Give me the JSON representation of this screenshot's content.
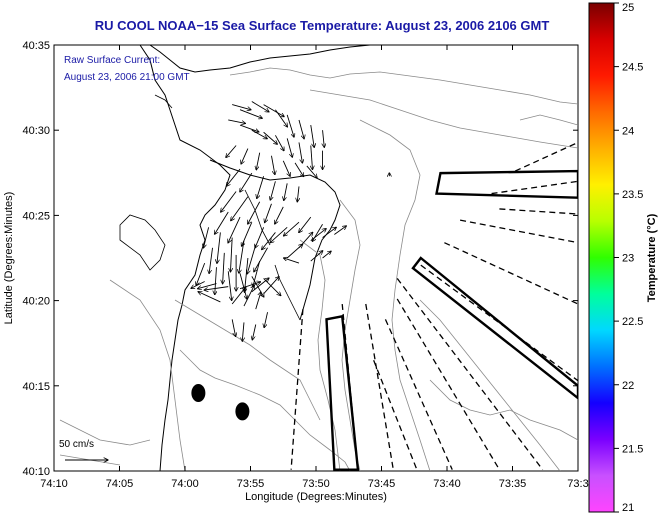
{
  "chart_data": {
    "type": "map",
    "title": "RU COOL  NOAA−15  Sea Surface Temperature:  August 23, 2006 2106 GMT",
    "legend": {
      "line1": "Raw Surface Current:",
      "line2": "August 23, 2006 21:00 GMT"
    },
    "xlabel": "Longitude (Degrees:Minutes)",
    "ylabel": "Latitude (Degrees:Minutes)",
    "x_ticks": [
      "74:10",
      "74:05",
      "74:00",
      "73:55",
      "73:50",
      "73:45",
      "73:40",
      "73:35",
      "73:3"
    ],
    "y_ticks": [
      "40:35",
      "40:30",
      "40:25",
      "40:20",
      "40:15",
      "40:10"
    ],
    "xlim": [
      -74.1667,
      -73.5
    ],
    "ylim": [
      40.1667,
      40.5833
    ],
    "scale_arrow_label": "50 cm/s",
    "colorbar": {
      "label": "Temperature (°C)",
      "ticks": [
        "25",
        "24.5",
        "24",
        "23.5",
        "23",
        "22.5",
        "22",
        "21.5",
        "21"
      ],
      "range": [
        21,
        25
      ],
      "colors": [
        "#ff44ff",
        "#c850ff",
        "#7a00ff",
        "#1400ff",
        "#0070ff",
        "#00d8ff",
        "#00ff9c",
        "#30ff00",
        "#b8ff00",
        "#fff000",
        "#ffb000",
        "#ff6a00",
        "#ff1a00",
        "#d80000",
        "#7a0000"
      ]
    },
    "current_vectors": [
      {
        "lon": -73.94,
        "lat": 40.525,
        "u": 22,
        "v": -6
      },
      {
        "lon": -73.93,
        "lat": 40.52,
        "u": 26,
        "v": -10
      },
      {
        "lon": -73.915,
        "lat": 40.528,
        "u": 20,
        "v": -12
      },
      {
        "lon": -73.9,
        "lat": 40.525,
        "u": 24,
        "v": -14
      },
      {
        "lon": -73.885,
        "lat": 40.52,
        "u": 14,
        "v": -20
      },
      {
        "lon": -73.87,
        "lat": 40.515,
        "u": 8,
        "v": -26
      },
      {
        "lon": -73.855,
        "lat": 40.51,
        "u": 6,
        "v": -22
      },
      {
        "lon": -73.84,
        "lat": 40.505,
        "u": 4,
        "v": -26
      },
      {
        "lon": -73.825,
        "lat": 40.5,
        "u": 2,
        "v": -20
      },
      {
        "lon": -73.945,
        "lat": 40.51,
        "u": 20,
        "v": -4
      },
      {
        "lon": -73.93,
        "lat": 40.505,
        "u": 22,
        "v": -8
      },
      {
        "lon": -73.915,
        "lat": 40.5,
        "u": 18,
        "v": -10
      },
      {
        "lon": -73.9,
        "lat": 40.498,
        "u": 16,
        "v": -14
      },
      {
        "lon": -73.885,
        "lat": 40.495,
        "u": 10,
        "v": -18
      },
      {
        "lon": -73.87,
        "lat": 40.492,
        "u": 6,
        "v": -22
      },
      {
        "lon": -73.855,
        "lat": 40.488,
        "u": 4,
        "v": -24
      },
      {
        "lon": -73.84,
        "lat": 40.485,
        "u": 2,
        "v": -28
      },
      {
        "lon": -73.825,
        "lat": 40.48,
        "u": 0,
        "v": -22
      },
      {
        "lon": -73.935,
        "lat": 40.485,
        "u": -12,
        "v": -14
      },
      {
        "lon": -73.92,
        "lat": 40.482,
        "u": -8,
        "v": -18
      },
      {
        "lon": -73.905,
        "lat": 40.478,
        "u": -4,
        "v": -20
      },
      {
        "lon": -73.89,
        "lat": 40.475,
        "u": 4,
        "v": -22
      },
      {
        "lon": -73.875,
        "lat": 40.47,
        "u": 8,
        "v": -18
      },
      {
        "lon": -73.86,
        "lat": 40.468,
        "u": 10,
        "v": -16
      },
      {
        "lon": -73.845,
        "lat": 40.465,
        "u": 12,
        "v": -14
      },
      {
        "lon": -73.93,
        "lat": 40.462,
        "u": -16,
        "v": -20
      },
      {
        "lon": -73.915,
        "lat": 40.458,
        "u": -14,
        "v": -22
      },
      {
        "lon": -73.9,
        "lat": 40.455,
        "u": -8,
        "v": -26
      },
      {
        "lon": -73.885,
        "lat": 40.45,
        "u": -6,
        "v": -22
      },
      {
        "lon": -73.87,
        "lat": 40.448,
        "u": -4,
        "v": -20
      },
      {
        "lon": -73.855,
        "lat": 40.445,
        "u": -2,
        "v": -18
      },
      {
        "lon": -73.935,
        "lat": 40.44,
        "u": -18,
        "v": -24
      },
      {
        "lon": -73.92,
        "lat": 40.435,
        "u": -20,
        "v": -28
      },
      {
        "lon": -73.905,
        "lat": 40.43,
        "u": -14,
        "v": -26
      },
      {
        "lon": -73.89,
        "lat": 40.428,
        "u": -8,
        "v": -22
      },
      {
        "lon": -73.875,
        "lat": 40.425,
        "u": -10,
        "v": -20
      },
      {
        "lon": -73.945,
        "lat": 40.42,
        "u": -16,
        "v": -26
      },
      {
        "lon": -73.93,
        "lat": 40.415,
        "u": -14,
        "v": -30
      },
      {
        "lon": -73.915,
        "lat": 40.41,
        "u": -12,
        "v": -28
      },
      {
        "lon": -73.9,
        "lat": 40.405,
        "u": -10,
        "v": -24
      },
      {
        "lon": -73.885,
        "lat": 40.4,
        "u": -16,
        "v": -20
      },
      {
        "lon": -73.87,
        "lat": 40.405,
        "u": -20,
        "v": -18
      },
      {
        "lon": -73.855,
        "lat": 40.41,
        "u": -18,
        "v": -16
      },
      {
        "lon": -73.84,
        "lat": 40.415,
        "u": -14,
        "v": -18
      },
      {
        "lon": -73.825,
        "lat": 40.408,
        "u": -12,
        "v": -20
      },
      {
        "lon": -73.97,
        "lat": 40.405,
        "u": -6,
        "v": -24
      },
      {
        "lon": -73.955,
        "lat": 40.4,
        "u": -4,
        "v": -36
      },
      {
        "lon": -73.94,
        "lat": 40.395,
        "u": -2,
        "v": -40
      },
      {
        "lon": -73.925,
        "lat": 40.392,
        "u": -6,
        "v": -38
      },
      {
        "lon": -73.91,
        "lat": 40.388,
        "u": -10,
        "v": -34
      },
      {
        "lon": -73.895,
        "lat": 40.385,
        "u": -16,
        "v": -28
      },
      {
        "lon": -73.965,
        "lat": 40.385,
        "u": -4,
        "v": -30
      },
      {
        "lon": -73.95,
        "lat": 40.38,
        "u": -2,
        "v": -36
      },
      {
        "lon": -73.935,
        "lat": 40.378,
        "u": 0,
        "v": -42
      },
      {
        "lon": -73.92,
        "lat": 40.375,
        "u": -4,
        "v": -40
      },
      {
        "lon": -73.905,
        "lat": 40.372,
        "u": -8,
        "v": -30
      },
      {
        "lon": -73.975,
        "lat": 40.37,
        "u": -10,
        "v": -26
      },
      {
        "lon": -73.96,
        "lat": 40.366,
        "u": -2,
        "v": -32
      },
      {
        "lon": -73.945,
        "lat": 40.362,
        "u": 4,
        "v": -34
      },
      {
        "lon": -73.93,
        "lat": 40.36,
        "u": 8,
        "v": -30
      },
      {
        "lon": -73.915,
        "lat": 40.357,
        "u": 14,
        "v": -24
      },
      {
        "lon": -73.9,
        "lat": 40.355,
        "u": 20,
        "v": -20
      },
      {
        "lon": -73.975,
        "lat": 40.352,
        "u": -16,
        "v": -8
      },
      {
        "lon": -73.96,
        "lat": 40.35,
        "u": -22,
        "v": -6
      },
      {
        "lon": -73.945,
        "lat": 40.347,
        "u": -28,
        "v": -4
      },
      {
        "lon": -73.93,
        "lat": 40.345,
        "u": 24,
        "v": 8
      },
      {
        "lon": -73.915,
        "lat": 40.342,
        "u": 20,
        "v": 16
      },
      {
        "lon": -73.9,
        "lat": 40.34,
        "u": 18,
        "v": 20
      },
      {
        "lon": -73.955,
        "lat": 40.332,
        "u": -26,
        "v": 12
      },
      {
        "lon": -73.94,
        "lat": 40.33,
        "u": 16,
        "v": 20
      },
      {
        "lon": -73.925,
        "lat": 40.328,
        "u": 12,
        "v": 24
      },
      {
        "lon": -73.91,
        "lat": 40.325,
        "u": 6,
        "v": 20
      },
      {
        "lon": -73.895,
        "lat": 40.322,
        "u": -4,
        "v": -18
      },
      {
        "lon": -73.94,
        "lat": 40.315,
        "u": 4,
        "v": -20
      },
      {
        "lon": -73.925,
        "lat": 40.312,
        "u": -2,
        "v": -22
      },
      {
        "lon": -73.91,
        "lat": 40.31,
        "u": -4,
        "v": -18
      },
      {
        "lon": -73.87,
        "lat": 40.375,
        "u": 18,
        "v": 16
      },
      {
        "lon": -73.855,
        "lat": 40.385,
        "u": 16,
        "v": 18
      },
      {
        "lon": -73.84,
        "lat": 40.392,
        "u": 18,
        "v": 14
      },
      {
        "lon": -73.825,
        "lat": 40.395,
        "u": 16,
        "v": 12
      },
      {
        "lon": -73.81,
        "lat": 40.398,
        "u": 14,
        "v": 10
      },
      {
        "lon": -73.855,
        "lat": 40.37,
        "u": -18,
        "v": 6
      },
      {
        "lon": -73.84,
        "lat": 40.372,
        "u": 14,
        "v": 12
      },
      {
        "lon": -73.825,
        "lat": 40.375,
        "u": 10,
        "v": 8
      },
      {
        "lon": -73.74,
        "lat": 40.455,
        "u": 0,
        "v": 4
      }
    ],
    "dashed_lines": [
      [
        [
          -73.58,
          40.46
        ],
        [
          -73.5,
          40.488
        ]
      ],
      [
        [
          -73.61,
          40.438
        ],
        [
          -73.5,
          40.45
        ]
      ],
      [
        [
          -73.6,
          40.423
        ],
        [
          -73.5,
          40.418
        ]
      ],
      [
        [
          -73.65,
          40.412
        ],
        [
          -73.5,
          40.39
        ]
      ],
      [
        [
          -73.67,
          40.39
        ],
        [
          -73.5,
          40.33
        ]
      ],
      [
        [
          -73.7,
          40.368
        ],
        [
          -73.5,
          40.255
        ]
      ],
      [
        [
          -73.73,
          40.355
        ],
        [
          -73.545,
          40.168
        ]
      ],
      [
        [
          -73.73,
          40.335
        ],
        [
          -73.6,
          40.168
        ]
      ],
      [
        [
          -73.745,
          40.315
        ],
        [
          -73.66,
          40.168
        ]
      ],
      [
        [
          -73.76,
          40.275
        ],
        [
          -73.705,
          40.168
        ]
      ],
      [
        [
          -73.77,
          40.33
        ],
        [
          -73.735,
          40.168
        ]
      ],
      [
        [
          -73.8,
          40.33
        ],
        [
          -73.78,
          40.168
        ]
      ],
      [
        [
          -73.85,
          40.325
        ],
        [
          -73.865,
          40.168
        ]
      ]
    ],
    "boxes": [
      [
        [
          -73.675,
          40.458
        ],
        [
          -73.5,
          40.46
        ],
        [
          -73.5,
          40.434
        ],
        [
          -73.68,
          40.438
        ]
      ],
      [
        [
          -73.7,
          40.375
        ],
        [
          -73.5,
          40.25
        ],
        [
          -73.5,
          40.238
        ],
        [
          -73.71,
          40.365
        ]
      ],
      [
        [
          -73.82,
          40.315
        ],
        [
          -73.8,
          40.318
        ],
        [
          -73.78,
          40.168
        ],
        [
          -73.81,
          40.168
        ]
      ]
    ],
    "eddies": [
      {
        "lon": -73.983,
        "lat": 40.243
      },
      {
        "lon": -73.927,
        "lat": 40.225
      }
    ]
  }
}
